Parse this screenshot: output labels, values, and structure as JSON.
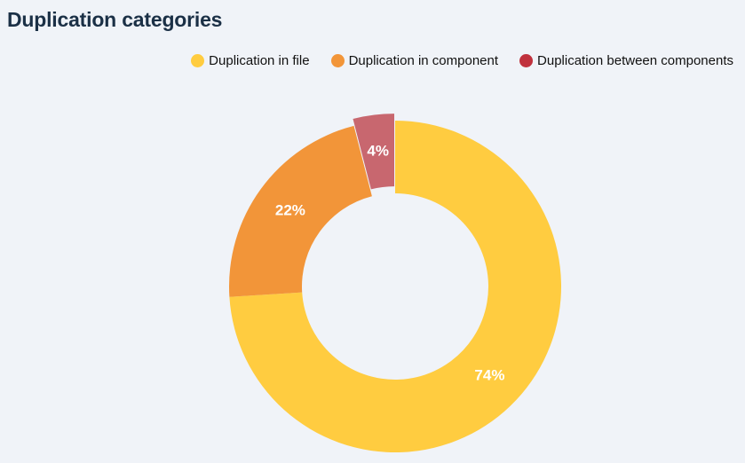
{
  "chart_data": {
    "type": "pie",
    "title": "Duplication categories",
    "donut": true,
    "legend_position": "top-right",
    "categories": [
      "Duplication in file",
      "Duplication in component",
      "Duplication between components"
    ],
    "values": [
      74,
      22,
      4
    ],
    "labels": [
      "74%",
      "22%",
      "4%"
    ],
    "colors": [
      "#ffcc40",
      "#f29539",
      "#c8676f"
    ],
    "legend_colors": [
      "#ffcc40",
      "#f29539",
      "#c0313d"
    ]
  }
}
